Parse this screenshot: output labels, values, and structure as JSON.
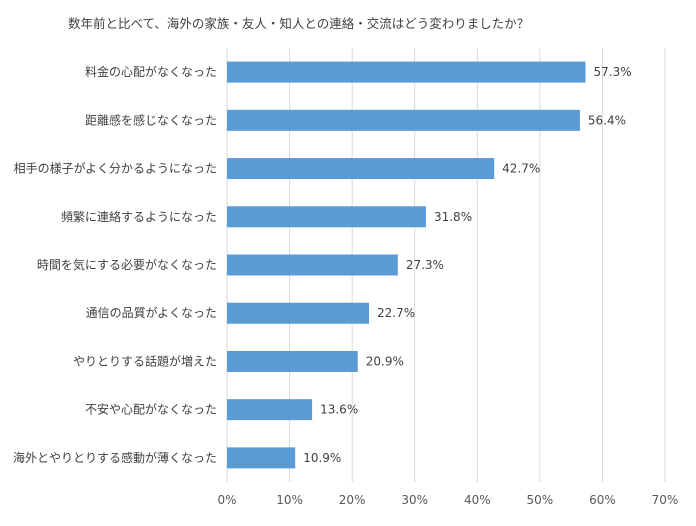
{
  "chart_data": {
    "type": "bar",
    "orientation": "horizontal",
    "title": "数年前と比べて、海外の家族・友人・知人との連絡・交流はどう変わりましたか？",
    "categories": [
      "料金の心配がなくなった",
      "距離感を感じなくなった",
      "相手の様子がよく分かるようになった",
      "頻繁に連絡するようになった",
      "時間を気にする必要がなくなった",
      "通信の品質がよくなった",
      "やりとりする話題が増えた",
      "不安や心配がなくなった",
      "海外とやりとりする感動が薄くなった"
    ],
    "values": [
      57.3,
      56.4,
      42.7,
      31.8,
      27.3,
      22.7,
      20.9,
      13.6,
      10.9
    ],
    "data_labels": [
      "57.3%",
      "56.4%",
      "42.7%",
      "31.8%",
      "27.3%",
      "22.7%",
      "20.9%",
      "13.6%",
      "10.9%"
    ],
    "x_ticks": [
      "0%",
      "10%",
      "20%",
      "30%",
      "40%",
      "50%",
      "60%",
      "70%"
    ],
    "xlim": [
      0,
      70
    ],
    "xlabel": "",
    "ylabel": "",
    "grid": "vertical",
    "legend": "none",
    "bar_color": "#5b9bd5",
    "grid_color": "#d9d9d9"
  }
}
